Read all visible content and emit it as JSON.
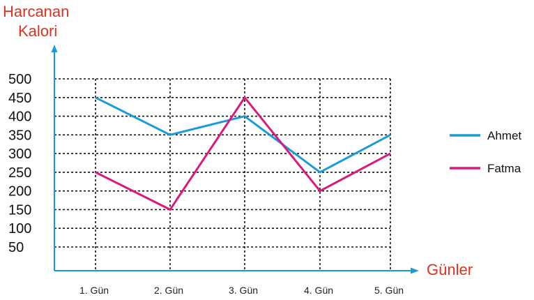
{
  "chart_data": {
    "type": "line",
    "ylabel_lines": [
      "Harcanan",
      "Kalori"
    ],
    "xlabel": "Günler",
    "categories": [
      "1. Gün",
      "2. Gün",
      "3. Gün",
      "4. Gün",
      "5. Gün"
    ],
    "yticks": [
      "500",
      "450",
      "400",
      "350",
      "300",
      "250",
      "200",
      "150",
      "100",
      "50"
    ],
    "ylim": [
      0,
      500
    ],
    "grid": true,
    "legend_position": "right",
    "series": [
      {
        "name": "Ahmet",
        "values": [
          450,
          350,
          400,
          250,
          350
        ],
        "color": "#1a9bd7"
      },
      {
        "name": "Fatma",
        "values": [
          250,
          150,
          450,
          200,
          300
        ],
        "color": "#d81b7a"
      }
    ],
    "title_color": "#e0301e",
    "axis_color": "#1a9bd7"
  }
}
